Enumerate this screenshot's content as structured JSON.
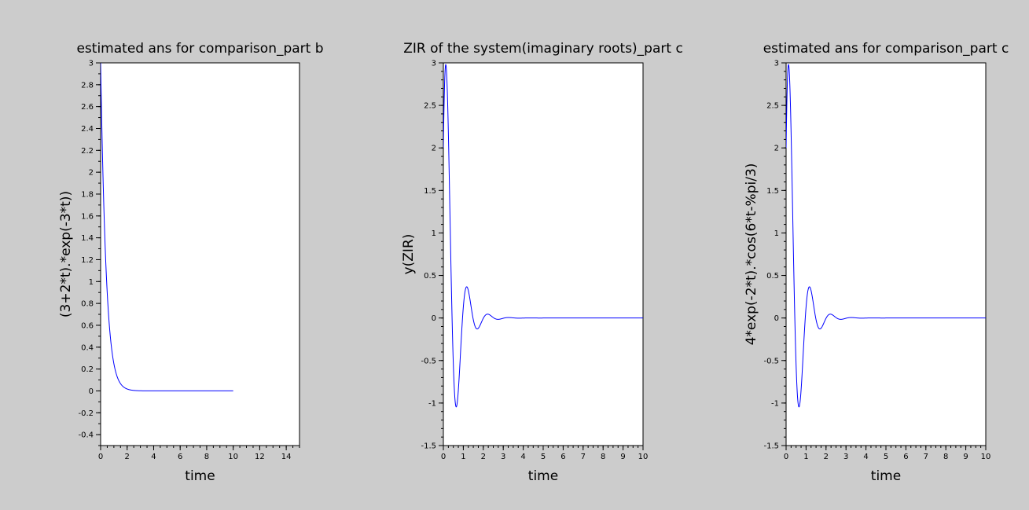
{
  "chart_data": [
    {
      "type": "line",
      "title": "estimated ans for comparison_part b",
      "xlabel": "time",
      "ylabel": "(3+2*t).*exp(-3*t))",
      "xlim": [
        0,
        15
      ],
      "ylim": [
        -0.5,
        3
      ],
      "xticks": [
        0,
        2,
        4,
        6,
        8,
        10,
        12,
        14
      ],
      "yticks": [
        -0.4,
        -0.2,
        0,
        0.2,
        0.4,
        0.6,
        0.8,
        1,
        1.2,
        1.4,
        1.6,
        1.8,
        2,
        2.2,
        2.4,
        2.6,
        2.8,
        3
      ],
      "x_minor_per_major": 4,
      "y_minor_per_major": 2,
      "grid": false,
      "series": [
        {
          "expression": "(3+2*t).*exp(-3*t)",
          "t_range": [
            0,
            10
          ],
          "color": "#0000ff"
        }
      ]
    },
    {
      "type": "line",
      "title": "ZIR of the system(imaginary roots)_part c",
      "xlabel": "time",
      "ylabel": "y(ZIR)",
      "xlim": [
        0,
        10
      ],
      "ylim": [
        -1.5,
        3
      ],
      "xticks": [
        0,
        1,
        2,
        3,
        4,
        5,
        6,
        7,
        8,
        9,
        10
      ],
      "yticks": [
        -1.5,
        -1,
        -0.5,
        0,
        0.5,
        1,
        1.5,
        2,
        2.5,
        3
      ],
      "x_minor_per_major": 4,
      "y_minor_per_major": 5,
      "grid": false,
      "series": [
        {
          "expression": "4*exp(-2*t).*cos(6*t-%pi/3)",
          "t_range": [
            0,
            10
          ],
          "color": "#0000ff"
        }
      ]
    },
    {
      "type": "line",
      "title": "estimated ans for comparison_part c",
      "xlabel": "time",
      "ylabel": "4*exp(-2*t).*cos(6*t-%pi/3)",
      "xlim": [
        0,
        10
      ],
      "ylim": [
        -1.5,
        3
      ],
      "xticks": [
        0,
        1,
        2,
        3,
        4,
        5,
        6,
        7,
        8,
        9,
        10
      ],
      "yticks": [
        -1.5,
        -1,
        -0.5,
        0,
        0.5,
        1,
        1.5,
        2,
        2.5,
        3
      ],
      "x_minor_per_major": 4,
      "y_minor_per_major": 5,
      "grid": false,
      "series": [
        {
          "expression": "4*exp(-2*t).*cos(6*t-%pi/3)",
          "t_range": [
            0,
            10
          ],
          "color": "#0000ff"
        }
      ]
    }
  ]
}
